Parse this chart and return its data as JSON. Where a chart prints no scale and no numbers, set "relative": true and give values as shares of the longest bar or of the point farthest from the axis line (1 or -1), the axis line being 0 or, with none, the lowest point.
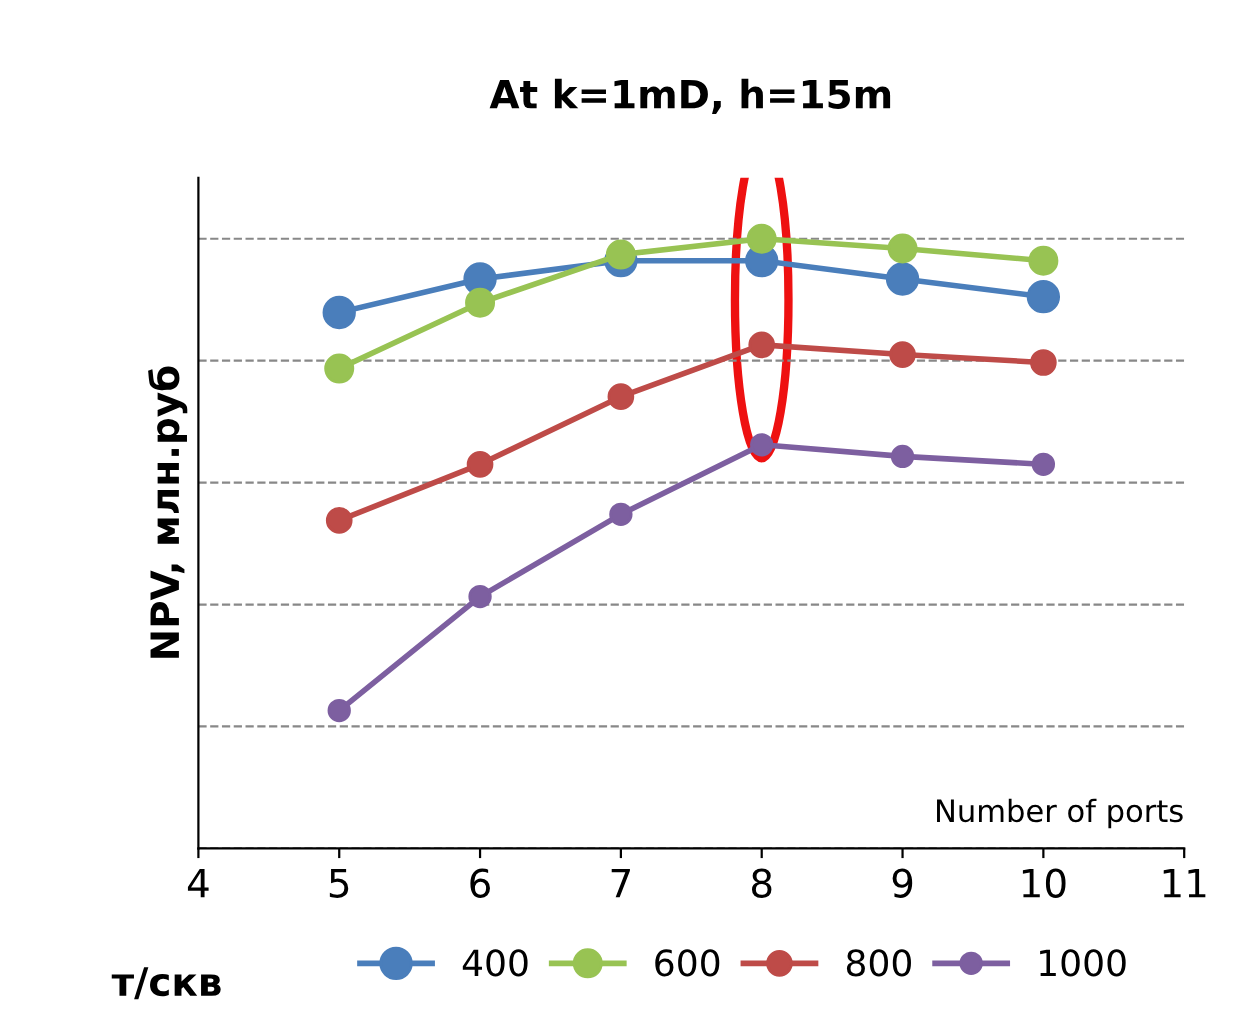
{
  "chart_data": {
    "type": "line",
    "title": "At k=1mD, h=15m",
    "xlabel": "Number of ports",
    "ylabel": "NPV, млн.руб",
    "legend_title": "т/скв",
    "relative": true,
    "x": [
      5,
      6,
      7,
      8,
      9,
      10
    ],
    "xlim": [
      4,
      11
    ],
    "xticks": [
      4,
      5,
      6,
      7,
      8,
      9,
      10,
      11
    ],
    "series": [
      {
        "name": "400",
        "color": "#4a7ebb",
        "values": [
          0.879,
          0.934,
          0.964,
          0.964,
          0.934,
          0.905
        ]
      },
      {
        "name": "600",
        "color": "#98c353",
        "values": [
          0.787,
          0.895,
          0.974,
          1,
          0.984,
          0.964
        ]
      },
      {
        "name": "800",
        "color": "#be4b48",
        "values": [
          0.538,
          0.63,
          0.741,
          0.826,
          0.81,
          0.797
        ]
      },
      {
        "name": "1000",
        "color": "#7d5fa0",
        "values": [
          0.226,
          0.413,
          0.548,
          0.662,
          0.643,
          0.63
        ]
      }
    ],
    "marker": "circle",
    "line_style": "solid",
    "grid": "y",
    "legend": "bottom"
  }
}
